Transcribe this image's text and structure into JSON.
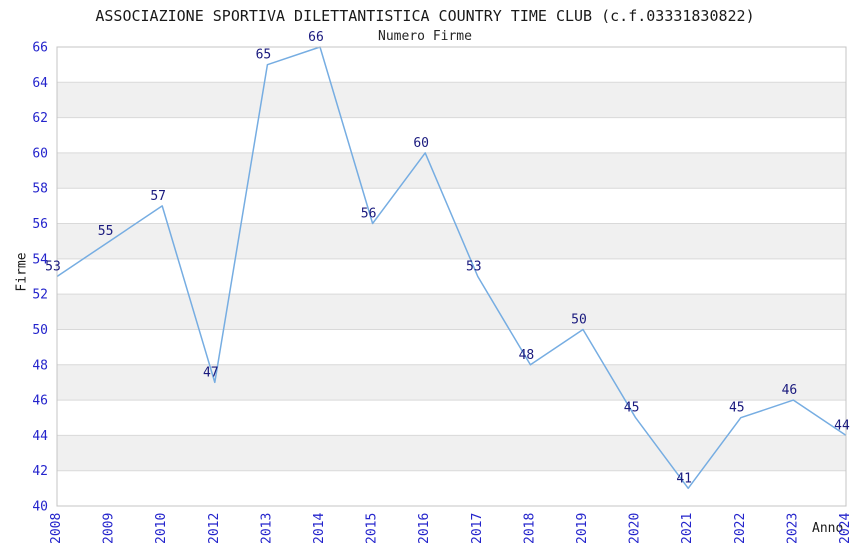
{
  "chart_data": {
    "type": "line",
    "title": "ASSOCIAZIONE SPORTIVA DILETTANTISTICA COUNTRY TIME CLUB (c.f.03331830822)",
    "subtitle": "Numero Firme",
    "xlabel": "Anno",
    "ylabel": "Firme",
    "categories": [
      "2008",
      "2009",
      "2010",
      "2012",
      "2013",
      "2014",
      "2015",
      "2016",
      "2017",
      "2018",
      "2019",
      "2020",
      "2021",
      "2022",
      "2023",
      "2024"
    ],
    "values": [
      53,
      55,
      57,
      47,
      65,
      66,
      56,
      60,
      53,
      48,
      50,
      45,
      41,
      45,
      46,
      44
    ],
    "ylim": [
      40,
      66
    ],
    "ytick_step": 2,
    "grid": "horizontal",
    "legend": "none",
    "point_labels_visible": true,
    "colors": {
      "line": "#76ade2",
      "data_label": "#1a1a7e",
      "tick_label": "#2424cc",
      "band": "#f0f0f0",
      "gridline": "#d9d9d9",
      "plot_border": "#c4c4c4",
      "background": "#ffffff",
      "text": "#1a1a1a"
    }
  }
}
